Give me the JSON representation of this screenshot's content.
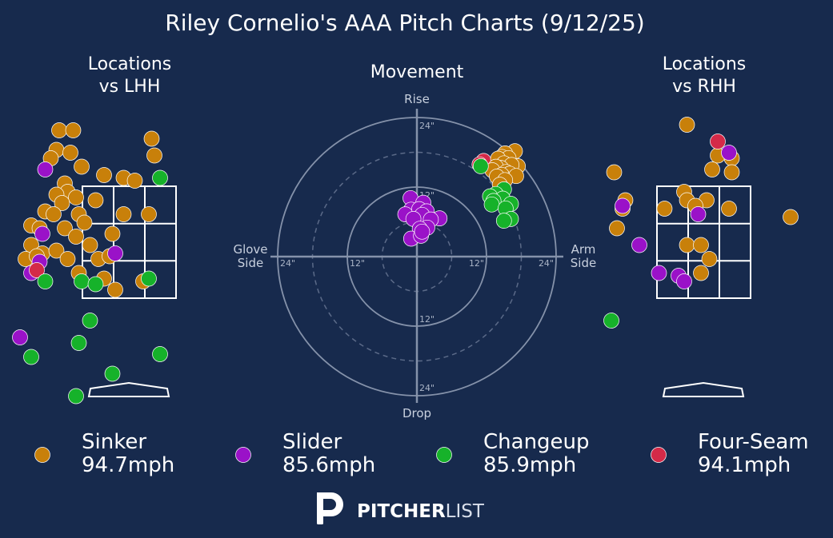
{
  "title": "Riley Cornelio's AAA Pitch Charts (9/12/25)",
  "colors": {
    "background": "#172a4d",
    "Sinker": "#c8800a",
    "Slider": "#9a12c8",
    "Changeup": "#16b22a",
    "Four-Seam": "#d42a48"
  },
  "brand": {
    "bold": "PITCHER",
    "light": "LIST",
    "icon": "pitcherlist-p-logo"
  },
  "legend": [
    {
      "pitch": "Sinker",
      "speed": "94.7mph"
    },
    {
      "pitch": "Slider",
      "speed": "85.6mph"
    },
    {
      "pitch": "Changeup",
      "speed": "85.9mph"
    },
    {
      "pitch": "Four-Seam",
      "speed": "94.1mph"
    }
  ],
  "chart_data": [
    {
      "type": "scatter",
      "title": "Locations\nvs LHH",
      "points": [
        {
          "pitch": "Sinker",
          "x": -1.25,
          "y": 4.5
        },
        {
          "pitch": "Sinker",
          "x": -1.0,
          "y": 4.5
        },
        {
          "pitch": "Sinker",
          "x": 0.4,
          "y": 4.35
        },
        {
          "pitch": "Sinker",
          "x": -1.3,
          "y": 4.15
        },
        {
          "pitch": "Sinker",
          "x": -1.05,
          "y": 4.1
        },
        {
          "pitch": "Sinker",
          "x": 0.45,
          "y": 4.05
        },
        {
          "pitch": "Sinker",
          "x": -1.4,
          "y": 4.0
        },
        {
          "pitch": "Sinker",
          "x": -0.85,
          "y": 3.85
        },
        {
          "pitch": "Sinker",
          "x": -0.45,
          "y": 3.7
        },
        {
          "pitch": "Sinker",
          "x": -0.1,
          "y": 3.65
        },
        {
          "pitch": "Sinker",
          "x": 0.1,
          "y": 3.6
        },
        {
          "pitch": "Sinker",
          "x": -1.15,
          "y": 3.55
        },
        {
          "pitch": "Sinker",
          "x": -1.1,
          "y": 3.4
        },
        {
          "pitch": "Sinker",
          "x": -0.95,
          "y": 3.3
        },
        {
          "pitch": "Sinker",
          "x": -1.3,
          "y": 3.35
        },
        {
          "pitch": "Sinker",
          "x": -1.2,
          "y": 3.2
        },
        {
          "pitch": "Sinker",
          "x": -0.6,
          "y": 3.25
        },
        {
          "pitch": "Sinker",
          "x": -1.5,
          "y": 3.05
        },
        {
          "pitch": "Sinker",
          "x": -1.35,
          "y": 3.0
        },
        {
          "pitch": "Sinker",
          "x": -0.9,
          "y": 3.0
        },
        {
          "pitch": "Sinker",
          "x": -0.1,
          "y": 3.0
        },
        {
          "pitch": "Sinker",
          "x": 0.35,
          "y": 3.0
        },
        {
          "pitch": "Sinker",
          "x": -1.75,
          "y": 2.8
        },
        {
          "pitch": "Sinker",
          "x": -1.6,
          "y": 2.75
        },
        {
          "pitch": "Sinker",
          "x": -1.15,
          "y": 2.75
        },
        {
          "pitch": "Sinker",
          "x": -0.8,
          "y": 2.85
        },
        {
          "pitch": "Sinker",
          "x": -0.3,
          "y": 2.65
        },
        {
          "pitch": "Sinker",
          "x": -1.75,
          "y": 2.45
        },
        {
          "pitch": "Sinker",
          "x": -0.95,
          "y": 2.6
        },
        {
          "pitch": "Sinker",
          "x": -0.7,
          "y": 2.45
        },
        {
          "pitch": "Sinker",
          "x": -1.55,
          "y": 2.3
        },
        {
          "pitch": "Sinker",
          "x": -1.3,
          "y": 2.35
        },
        {
          "pitch": "Sinker",
          "x": -1.85,
          "y": 2.2
        },
        {
          "pitch": "Sinker",
          "x": -1.65,
          "y": 2.25
        },
        {
          "pitch": "Sinker",
          "x": -1.1,
          "y": 2.2
        },
        {
          "pitch": "Sinker",
          "x": -0.55,
          "y": 2.2
        },
        {
          "pitch": "Sinker",
          "x": -0.35,
          "y": 2.25
        },
        {
          "pitch": "Sinker",
          "x": 0.25,
          "y": 1.8
        },
        {
          "pitch": "Sinker",
          "x": -0.9,
          "y": 1.95
        },
        {
          "pitch": "Sinker",
          "x": -0.45,
          "y": 1.85
        },
        {
          "pitch": "Sinker",
          "x": -0.25,
          "y": 1.65
        },
        {
          "pitch": "Slider",
          "x": -1.5,
          "y": 3.8
        },
        {
          "pitch": "Slider",
          "x": -1.55,
          "y": 2.65
        },
        {
          "pitch": "Slider",
          "x": -1.6,
          "y": 2.15
        },
        {
          "pitch": "Slider",
          "x": -1.75,
          "y": 1.95
        },
        {
          "pitch": "Slider",
          "x": -0.25,
          "y": 2.3
        },
        {
          "pitch": "Slider",
          "x": -1.95,
          "y": 0.8
        },
        {
          "pitch": "Four-Seam",
          "x": -1.65,
          "y": 2.0
        },
        {
          "pitch": "Changeup",
          "x": 0.55,
          "y": 3.65
        },
        {
          "pitch": "Changeup",
          "x": -1.5,
          "y": 1.8
        },
        {
          "pitch": "Changeup",
          "x": -0.85,
          "y": 1.8
        },
        {
          "pitch": "Changeup",
          "x": -0.6,
          "y": 1.75
        },
        {
          "pitch": "Changeup",
          "x": 0.35,
          "y": 1.85
        },
        {
          "pitch": "Changeup",
          "x": -0.7,
          "y": 1.1
        },
        {
          "pitch": "Changeup",
          "x": -0.9,
          "y": 0.7
        },
        {
          "pitch": "Changeup",
          "x": -1.75,
          "y": 0.45
        },
        {
          "pitch": "Changeup",
          "x": 0.55,
          "y": 0.5
        },
        {
          "pitch": "Changeup",
          "x": -0.3,
          "y": 0.15
        },
        {
          "pitch": "Changeup",
          "x": -0.95,
          "y": -0.25
        }
      ]
    },
    {
      "type": "scatter",
      "title": "Movement",
      "axis_labels": {
        "top": "Rise",
        "bottom": "Drop",
        "left": "Glove\nSide",
        "right": "Arm\nSide"
      },
      "ring_labels": {
        "h_left": [
          "24\"",
          "12\""
        ],
        "h_right": [
          "12\"",
          "24\""
        ],
        "v_top": [
          "24\"",
          "12\""
        ],
        "v_bottom": [
          "12\"",
          "24\""
        ]
      },
      "rings": [
        6,
        12,
        18,
        24
      ],
      "dashed_rings": [
        6,
        18
      ],
      "points": [
        {
          "pitch": "Four-Seam",
          "x": 11.5,
          "y": 16.5
        },
        {
          "pitch": "Four-Seam",
          "x": 10.8,
          "y": 15.9
        },
        {
          "pitch": "Sinker",
          "x": 16.9,
          "y": 18.2
        },
        {
          "pitch": "Sinker",
          "x": 15.2,
          "y": 17.8
        },
        {
          "pitch": "Sinker",
          "x": 14.6,
          "y": 17.2
        },
        {
          "pitch": "Sinker",
          "x": 15.8,
          "y": 17.0
        },
        {
          "pitch": "Sinker",
          "x": 14.0,
          "y": 16.9
        },
        {
          "pitch": "Sinker",
          "x": 17.4,
          "y": 15.6
        },
        {
          "pitch": "Sinker",
          "x": 15.0,
          "y": 16.1
        },
        {
          "pitch": "Sinker",
          "x": 16.3,
          "y": 15.8
        },
        {
          "pitch": "Sinker",
          "x": 14.5,
          "y": 15.3
        },
        {
          "pitch": "Sinker",
          "x": 13.6,
          "y": 15.5
        },
        {
          "pitch": "Sinker",
          "x": 13.0,
          "y": 14.9
        },
        {
          "pitch": "Sinker",
          "x": 15.4,
          "y": 14.6
        },
        {
          "pitch": "Sinker",
          "x": 16.0,
          "y": 14.3
        },
        {
          "pitch": "Sinker",
          "x": 14.6,
          "y": 14.1
        },
        {
          "pitch": "Sinker",
          "x": 17.1,
          "y": 13.9
        },
        {
          "pitch": "Sinker",
          "x": 13.8,
          "y": 13.8
        },
        {
          "pitch": "Sinker",
          "x": 15.2,
          "y": 13.2
        },
        {
          "pitch": "Sinker",
          "x": 14.3,
          "y": 12.4
        },
        {
          "pitch": "Changeup",
          "x": 11.0,
          "y": 15.6
        },
        {
          "pitch": "Changeup",
          "x": 15.0,
          "y": 11.6
        },
        {
          "pitch": "Changeup",
          "x": 13.6,
          "y": 10.8
        },
        {
          "pitch": "Changeup",
          "x": 12.6,
          "y": 10.4
        },
        {
          "pitch": "Changeup",
          "x": 14.8,
          "y": 10.0
        },
        {
          "pitch": "Changeup",
          "x": 13.2,
          "y": 9.6
        },
        {
          "pitch": "Changeup",
          "x": 16.2,
          "y": 9.1
        },
        {
          "pitch": "Changeup",
          "x": 12.9,
          "y": 9.0
        },
        {
          "pitch": "Changeup",
          "x": 15.3,
          "y": 8.3
        },
        {
          "pitch": "Changeup",
          "x": 16.2,
          "y": 6.5
        },
        {
          "pitch": "Changeup",
          "x": 15.0,
          "y": 6.2
        },
        {
          "pitch": "Slider",
          "x": -1.1,
          "y": 10.1
        },
        {
          "pitch": "Slider",
          "x": 1.1,
          "y": 9.3
        },
        {
          "pitch": "Slider",
          "x": -1.0,
          "y": 8.1
        },
        {
          "pitch": "Slider",
          "x": 0.4,
          "y": 8.2
        },
        {
          "pitch": "Slider",
          "x": 1.7,
          "y": 7.8
        },
        {
          "pitch": "Slider",
          "x": -2.0,
          "y": 7.3
        },
        {
          "pitch": "Slider",
          "x": 0.9,
          "y": 7.2
        },
        {
          "pitch": "Slider",
          "x": 3.9,
          "y": 6.6
        },
        {
          "pitch": "Slider",
          "x": 2.4,
          "y": 6.4
        },
        {
          "pitch": "Slider",
          "x": -0.6,
          "y": 6.5
        },
        {
          "pitch": "Slider",
          "x": 1.8,
          "y": 5.0
        },
        {
          "pitch": "Slider",
          "x": 0.5,
          "y": 4.8
        },
        {
          "pitch": "Slider",
          "x": -1.0,
          "y": 3.1
        },
        {
          "pitch": "Slider",
          "x": 0.7,
          "y": 3.6
        },
        {
          "pitch": "Slider",
          "x": 0.9,
          "y": 4.3
        }
      ]
    },
    {
      "type": "scatter",
      "title": "Locations\nvs RHH",
      "points": [
        {
          "pitch": "Sinker",
          "x": -0.3,
          "y": 4.6
        },
        {
          "pitch": "Sinker",
          "x": 0.25,
          "y": 4.05
        },
        {
          "pitch": "Sinker",
          "x": 0.5,
          "y": 4.0
        },
        {
          "pitch": "Sinker",
          "x": 0.15,
          "y": 3.8
        },
        {
          "pitch": "Sinker",
          "x": 0.5,
          "y": 3.75
        },
        {
          "pitch": "Sinker",
          "x": -1.6,
          "y": 3.75
        },
        {
          "pitch": "Sinker",
          "x": -0.35,
          "y": 3.4
        },
        {
          "pitch": "Sinker",
          "x": -0.3,
          "y": 3.25
        },
        {
          "pitch": "Sinker",
          "x": 0.05,
          "y": 3.25
        },
        {
          "pitch": "Sinker",
          "x": -1.4,
          "y": 3.25
        },
        {
          "pitch": "Sinker",
          "x": -0.15,
          "y": 3.15
        },
        {
          "pitch": "Sinker",
          "x": -1.45,
          "y": 3.1
        },
        {
          "pitch": "Sinker",
          "x": -0.7,
          "y": 3.1
        },
        {
          "pitch": "Sinker",
          "x": 0.45,
          "y": 3.1
        },
        {
          "pitch": "Sinker",
          "x": -1.55,
          "y": 2.75
        },
        {
          "pitch": "Sinker",
          "x": -0.3,
          "y": 2.45
        },
        {
          "pitch": "Sinker",
          "x": -0.05,
          "y": 2.45
        },
        {
          "pitch": "Sinker",
          "x": 0.1,
          "y": 2.2
        },
        {
          "pitch": "Sinker",
          "x": -0.05,
          "y": 1.95
        },
        {
          "pitch": "Sinker",
          "x": 1.55,
          "y": 2.95
        },
        {
          "pitch": "Slider",
          "x": 0.45,
          "y": 4.1
        },
        {
          "pitch": "Slider",
          "x": -0.1,
          "y": 3.0
        },
        {
          "pitch": "Slider",
          "x": -1.45,
          "y": 3.15
        },
        {
          "pitch": "Slider",
          "x": -1.15,
          "y": 2.45
        },
        {
          "pitch": "Slider",
          "x": -0.8,
          "y": 1.95
        },
        {
          "pitch": "Slider",
          "x": -0.45,
          "y": 1.9
        },
        {
          "pitch": "Slider",
          "x": -0.35,
          "y": 1.8
        },
        {
          "pitch": "Four-Seam",
          "x": 0.25,
          "y": 4.3
        },
        {
          "pitch": "Changeup",
          "x": -1.65,
          "y": 1.1
        }
      ]
    }
  ]
}
